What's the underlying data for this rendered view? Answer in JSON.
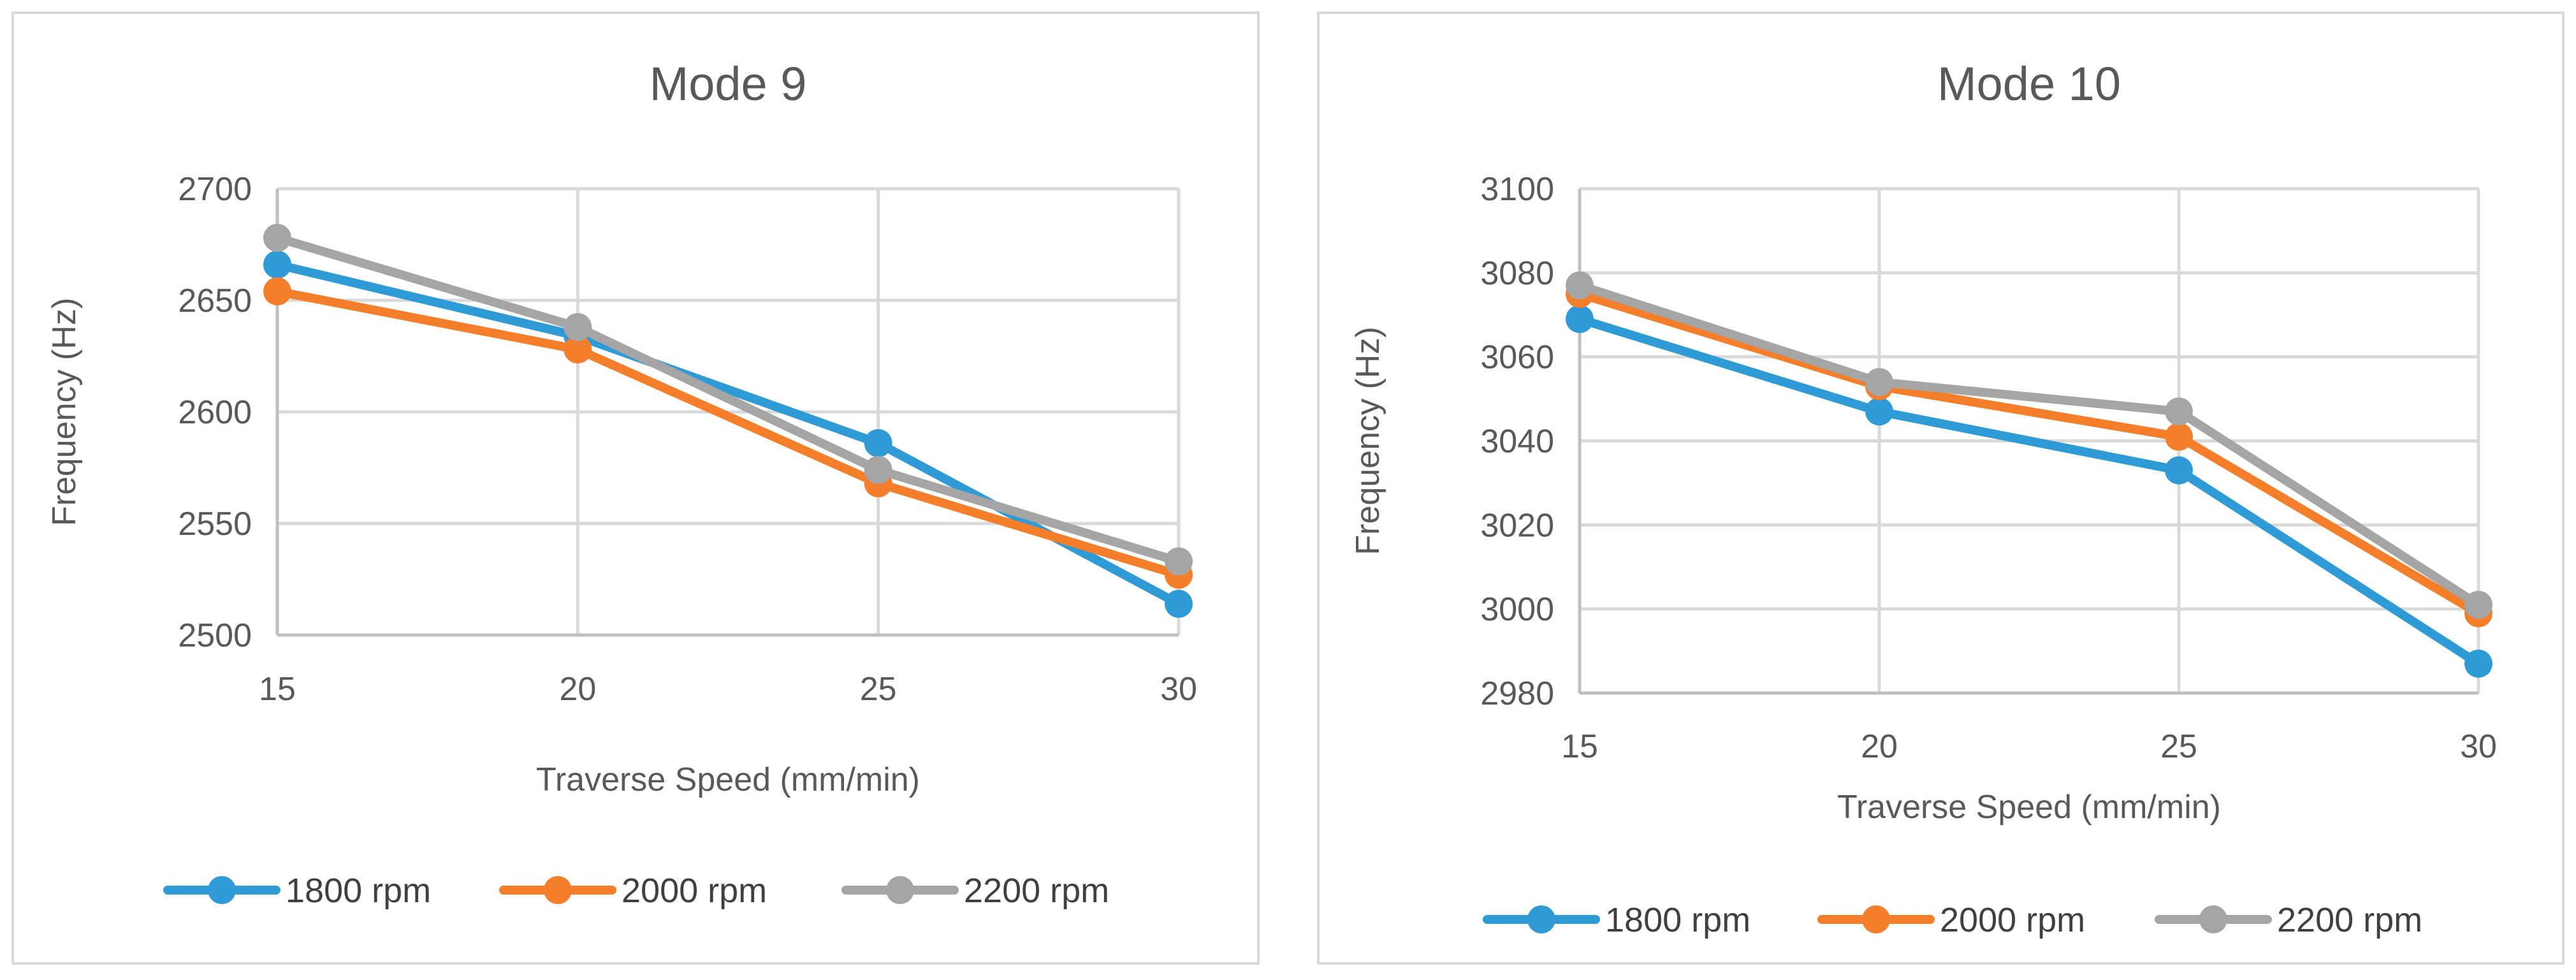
{
  "chart_data": [
    {
      "type": "line",
      "title": "Mode 9",
      "xlabel": "Traverse Speed (mm/min)",
      "ylabel": "Frequency (Hz)",
      "categories": [
        "15",
        "20",
        "25",
        "30"
      ],
      "ylim": [
        2500,
        2700
      ],
      "yticks": [
        "2500",
        "2550",
        "2600",
        "2650",
        "2700"
      ],
      "series": [
        {
          "name": "1800 rpm",
          "color": "#2E9BD6",
          "values": [
            2666,
            2634,
            2586,
            2514
          ]
        },
        {
          "name": "2000 rpm",
          "color": "#F57E2A",
          "values": [
            2654,
            2628,
            2568,
            2527
          ]
        },
        {
          "name": "2200 rpm",
          "color": "#A5A5A5",
          "values": [
            2678,
            2638,
            2574,
            2533
          ]
        }
      ]
    },
    {
      "type": "line",
      "title": "Mode 10",
      "xlabel": "Traverse Speed (mm/min)",
      "ylabel": "Frequency (Hz)",
      "categories": [
        "15",
        "20",
        "25",
        "30"
      ],
      "ylim": [
        2980,
        3100
      ],
      "yticks": [
        "2980",
        "3000",
        "3020",
        "3040",
        "3060",
        "3080",
        "3100"
      ],
      "series": [
        {
          "name": "1800 rpm",
          "color": "#2E9BD6",
          "values": [
            3069,
            3047,
            3033,
            2987
          ]
        },
        {
          "name": "2000 rpm",
          "color": "#F57E2A",
          "values": [
            3075,
            3053,
            3041,
            2999
          ]
        },
        {
          "name": "2200 rpm",
          "color": "#A5A5A5",
          "values": [
            3077,
            3054,
            3047,
            3001
          ]
        }
      ]
    }
  ]
}
